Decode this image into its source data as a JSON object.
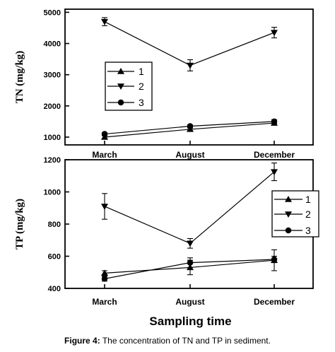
{
  "figure": {
    "caption_label": "Figure 4:",
    "caption_text": " The concentration of TN and TP in sediment."
  },
  "chart_data": [
    {
      "type": "line",
      "categories": [
        "March",
        "August",
        "December"
      ],
      "ylabel": "TN (mg/kg)",
      "ylim": [
        750,
        5100
      ],
      "yticks": [
        1000,
        2000,
        3000,
        4000,
        5000
      ],
      "legend": "left",
      "series": [
        {
          "name": "1",
          "marker": "triangle-up",
          "values": [
            1000,
            1250,
            1450
          ],
          "err": [
            40,
            40,
            60
          ]
        },
        {
          "name": "2",
          "marker": "triangle-down",
          "values": [
            4700,
            3300,
            4350
          ],
          "err": [
            130,
            180,
            170
          ]
        },
        {
          "name": "3",
          "marker": "circle",
          "values": [
            1100,
            1350,
            1500
          ],
          "err": [
            40,
            40,
            60
          ]
        }
      ]
    },
    {
      "type": "line",
      "categories": [
        "March",
        "August",
        "December"
      ],
      "xlabel": "Sampling time",
      "ylabel": "TP (mg/kg)",
      "ylim": [
        400,
        1200
      ],
      "yticks": [
        400,
        600,
        800,
        1000,
        1200
      ],
      "legend": "right",
      "series": [
        {
          "name": "1",
          "marker": "triangle-up",
          "values": [
            495,
            530,
            575
          ],
          "err": [
            15,
            45,
            65
          ]
        },
        {
          "name": "2",
          "marker": "triangle-down",
          "values": [
            910,
            680,
            1125
          ],
          "err": [
            80,
            30,
            55
          ]
        },
        {
          "name": "3",
          "marker": "circle",
          "values": [
            460,
            560,
            580
          ],
          "err": [
            15,
            30,
            20
          ]
        }
      ]
    }
  ]
}
